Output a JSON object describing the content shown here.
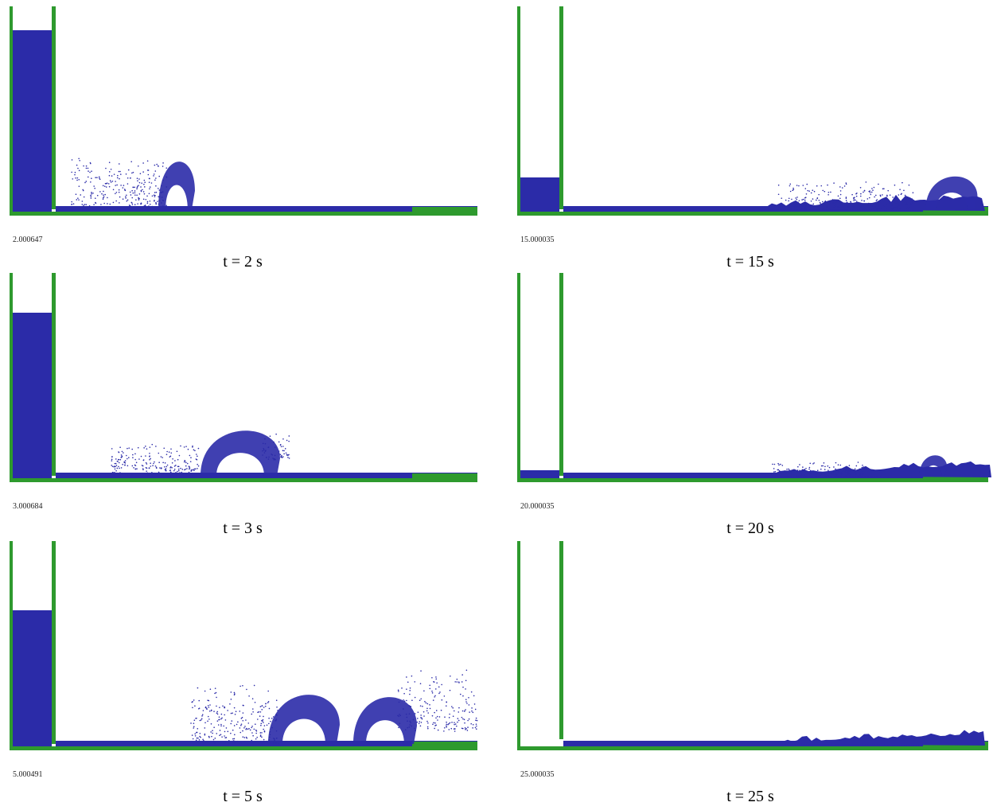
{
  "panels": [
    {
      "timestamp": "2.000647",
      "caption": "t = 2 s"
    },
    {
      "timestamp": "3.000684",
      "caption": "t = 3 s"
    },
    {
      "timestamp": "5.000491",
      "caption": "t = 5 s"
    },
    {
      "timestamp": "15.000035",
      "caption": "t = 15 s"
    },
    {
      "timestamp": "20.000035",
      "caption": "t = 20 s"
    },
    {
      "timestamp": "25.000035",
      "caption": "t = 25 s"
    }
  ]
}
